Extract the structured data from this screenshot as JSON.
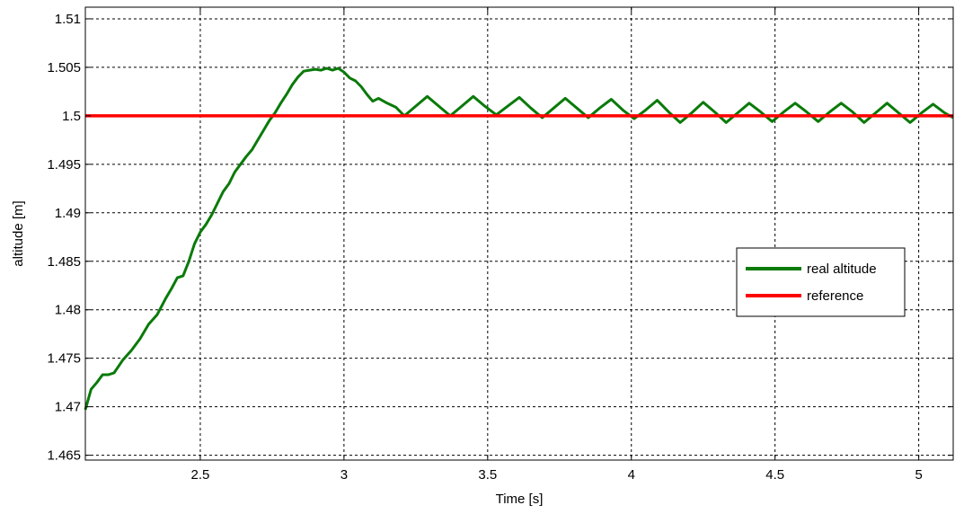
{
  "chart_data": {
    "type": "line",
    "title": "",
    "xlabel": "Time [s]",
    "ylabel": "altitude [m]",
    "xlim": [
      2.1,
      5.12
    ],
    "ylim": [
      1.4645,
      1.5112
    ],
    "grid": true,
    "x_ticks": [
      2.5,
      3,
      3.5,
      4,
      4.5,
      5
    ],
    "x_tick_labels": [
      "2.5",
      "3",
      "3.5",
      "4",
      "4.5",
      "5"
    ],
    "y_ticks": [
      1.465,
      1.47,
      1.475,
      1.48,
      1.485,
      1.49,
      1.495,
      1.5,
      1.505,
      1.51
    ],
    "y_tick_labels": [
      "1.465",
      "1.47",
      "1.475",
      "1.48",
      "1.485",
      "1.49",
      "1.495",
      "1.5",
      "1.505",
      "1.51"
    ],
    "legend": {
      "position": "right",
      "entries": [
        "real altitude",
        "reference"
      ]
    },
    "series": [
      {
        "name": "real altitude",
        "color": "#0a7a0a",
        "x": [
          2.1,
          2.12,
          2.14,
          2.16,
          2.18,
          2.2,
          2.23,
          2.26,
          2.29,
          2.32,
          2.35,
          2.38,
          2.4,
          2.42,
          2.44,
          2.46,
          2.48,
          2.5,
          2.52,
          2.54,
          2.56,
          2.58,
          2.6,
          2.62,
          2.64,
          2.66,
          2.68,
          2.7,
          2.72,
          2.74,
          2.76,
          2.78,
          2.8,
          2.82,
          2.84,
          2.86,
          2.88,
          2.9,
          2.92,
          2.94,
          2.96,
          2.98,
          3.0,
          3.02,
          3.04,
          3.06,
          3.08,
          3.1,
          3.12,
          3.15,
          3.18,
          3.21,
          3.25,
          3.29,
          3.33,
          3.37,
          3.41,
          3.45,
          3.49,
          3.53,
          3.57,
          3.61,
          3.65,
          3.69,
          3.73,
          3.77,
          3.81,
          3.85,
          3.89,
          3.93,
          3.97,
          4.01,
          4.05,
          4.09,
          4.13,
          4.17,
          4.21,
          4.25,
          4.29,
          4.33,
          4.37,
          4.41,
          4.45,
          4.49,
          4.53,
          4.57,
          4.61,
          4.65,
          4.69,
          4.73,
          4.77,
          4.81,
          4.85,
          4.89,
          4.93,
          4.97,
          5.01,
          5.05,
          5.09,
          5.12
        ],
        "values": [
          1.4697,
          1.4718,
          1.4725,
          1.4733,
          1.4733,
          1.4735,
          1.4748,
          1.4758,
          1.477,
          1.4785,
          1.4795,
          1.4812,
          1.4822,
          1.4833,
          1.4835,
          1.485,
          1.4868,
          1.488,
          1.4888,
          1.4898,
          1.491,
          1.4922,
          1.493,
          1.4942,
          1.495,
          1.4958,
          1.4965,
          1.4975,
          1.4985,
          1.4995,
          1.5003,
          1.5013,
          1.5022,
          1.5032,
          1.504,
          1.5046,
          1.5047,
          1.5048,
          1.5047,
          1.5049,
          1.5047,
          1.5049,
          1.5045,
          1.5039,
          1.5036,
          1.503,
          1.5022,
          1.5015,
          1.5018,
          1.5013,
          1.5009,
          1.5,
          1.501,
          1.502,
          1.501,
          1.5,
          1.501,
          1.502,
          1.501,
          1.5001,
          1.501,
          1.5019,
          1.5008,
          1.4998,
          1.5008,
          1.5018,
          1.5008,
          1.4998,
          1.5008,
          1.5017,
          1.5006,
          1.4997,
          1.5006,
          1.5016,
          1.5004,
          1.4993,
          1.5003,
          1.5014,
          1.5004,
          1.4993,
          1.5003,
          1.5013,
          1.5004,
          1.4994,
          1.5004,
          1.5013,
          1.5004,
          1.4994,
          1.5004,
          1.5013,
          1.5004,
          1.4993,
          1.5003,
          1.5013,
          1.5003,
          1.4993,
          1.5003,
          1.5012,
          1.5003,
          1.4998
        ]
      },
      {
        "name": "reference",
        "color": "#ff0000",
        "x": [
          2.1,
          5.12
        ],
        "values": [
          1.5,
          1.5
        ]
      }
    ]
  }
}
